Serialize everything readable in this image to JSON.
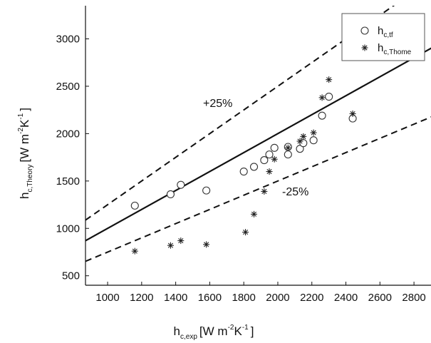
{
  "chart_data": {
    "type": "scatter",
    "xlim": [
      870,
      2900
    ],
    "ylim": [
      400,
      3350
    ],
    "x_ticks": [
      1000,
      1200,
      1400,
      1600,
      1800,
      2000,
      2200,
      2400,
      2600,
      2800
    ],
    "y_ticks": [
      500,
      1000,
      1500,
      2000,
      2500,
      3000
    ],
    "xlabel": {
      "base": "h",
      "sub": "c,exp",
      "units": "[W m",
      "exp1": "-2",
      "mid": "K",
      "exp2": "-1",
      "close": "]"
    },
    "ylabel": {
      "base": "h",
      "sub": "c,Theory",
      "units": "[W m",
      "exp1": "-2",
      "mid": "K",
      "exp2": "-1",
      "close": "]"
    },
    "grid": false,
    "legend_position": "top-right",
    "series": [
      {
        "name": "h_c,tf",
        "label_base": "h",
        "label_sub": "c,tf",
        "marker": "circle",
        "points": [
          [
            1160,
            1240
          ],
          [
            1370,
            1360
          ],
          [
            1430,
            1460
          ],
          [
            1580,
            1400
          ],
          [
            1800,
            1600
          ],
          [
            1860,
            1650
          ],
          [
            1920,
            1720
          ],
          [
            1950,
            1780
          ],
          [
            1980,
            1850
          ],
          [
            2060,
            1780
          ],
          [
            2060,
            1860
          ],
          [
            2130,
            1840
          ],
          [
            2150,
            1900
          ],
          [
            2210,
            1930
          ],
          [
            2260,
            2190
          ],
          [
            2300,
            2390
          ],
          [
            2440,
            2160
          ]
        ]
      },
      {
        "name": "h_c,Thome",
        "label_base": "h",
        "label_sub": "c,Thome",
        "marker": "asterisk",
        "points": [
          [
            1160,
            760
          ],
          [
            1370,
            820
          ],
          [
            1430,
            870
          ],
          [
            1580,
            830
          ],
          [
            1810,
            960
          ],
          [
            1860,
            1150
          ],
          [
            1920,
            1390
          ],
          [
            1950,
            1600
          ],
          [
            1980,
            1730
          ],
          [
            2060,
            1850
          ],
          [
            2130,
            1920
          ],
          [
            2150,
            1970
          ],
          [
            2210,
            2010
          ],
          [
            2260,
            2380
          ],
          [
            2300,
            2570
          ],
          [
            2440,
            2210
          ]
        ]
      }
    ],
    "reference_lines": [
      {
        "kind": "solid",
        "slope": 1.0
      },
      {
        "kind": "dashed",
        "slope": 1.25,
        "label": "+25%"
      },
      {
        "kind": "dashed",
        "slope": 0.75,
        "label": "-25%"
      }
    ]
  }
}
